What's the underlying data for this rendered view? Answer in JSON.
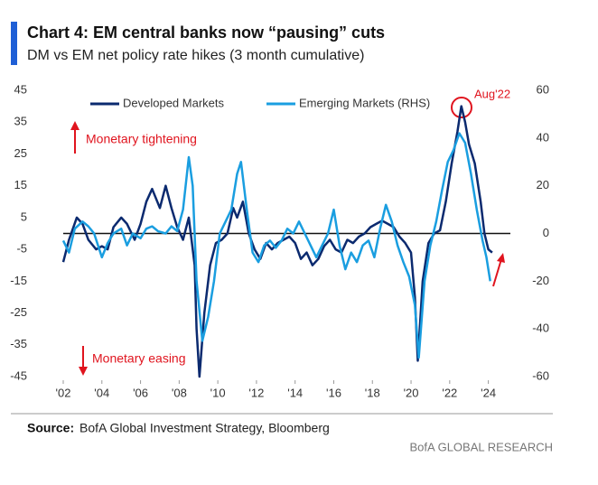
{
  "chart_data": {
    "type": "line",
    "title": "Chart 4: EM central banks now “pausing” cuts",
    "subtitle": "DM vs EM net policy rate hikes (3 month cumulative)",
    "annotations": [
      "Monetary tightening",
      "Monetary easing",
      "Aug'22"
    ],
    "source_label": "Source:",
    "source": "BofA Global Investment Strategy, Bloomberg",
    "footer": "BofA GLOBAL RESEARCH",
    "xlim": [
      2002,
      2025
    ],
    "xticks": [
      {
        "value": 2002,
        "label": "'02"
      },
      {
        "value": 2004,
        "label": "'04"
      },
      {
        "value": 2006,
        "label": "'06"
      },
      {
        "value": 2008,
        "label": "'08"
      },
      {
        "value": 2010,
        "label": "'10"
      },
      {
        "value": 2012,
        "label": "'12"
      },
      {
        "value": 2014,
        "label": "'14"
      },
      {
        "value": 2016,
        "label": "'16"
      },
      {
        "value": 2018,
        "label": "'18"
      },
      {
        "value": 2020,
        "label": "'20"
      },
      {
        "value": 2022,
        "label": "'22"
      },
      {
        "value": 2024,
        "label": "'24"
      }
    ],
    "ylim": [
      -45,
      45
    ],
    "yticks": [
      45,
      35,
      25,
      15,
      5,
      -5,
      -15,
      -25,
      -35,
      -45
    ],
    "y2lim": [
      -60,
      60
    ],
    "y2ticks": [
      60,
      40,
      20,
      0,
      -20,
      -40,
      -60
    ],
    "series": [
      {
        "name": "Developed Markets",
        "color": "#0b2a6f",
        "x": [
          2002.0,
          2002.3,
          2002.7,
          2003.0,
          2003.3,
          2003.7,
          2004.0,
          2004.3,
          2004.6,
          2005.0,
          2005.3,
          2005.7,
          2006.0,
          2006.3,
          2006.6,
          2007.0,
          2007.3,
          2007.6,
          2007.9,
          2008.2,
          2008.5,
          2008.8,
          2008.9,
          2009.05,
          2009.3,
          2009.6,
          2009.9,
          2010.2,
          2010.5,
          2010.8,
          2011.0,
          2011.3,
          2011.6,
          2011.9,
          2012.2,
          2012.5,
          2012.8,
          2013.1,
          2013.4,
          2013.7,
          2014.0,
          2014.3,
          2014.6,
          2014.9,
          2015.2,
          2015.5,
          2015.8,
          2016.1,
          2016.4,
          2016.7,
          2017.0,
          2017.3,
          2017.6,
          2017.9,
          2018.2,
          2018.5,
          2018.8,
          2019.1,
          2019.4,
          2019.7,
          2020.0,
          2020.2,
          2020.35,
          2020.6,
          2020.9,
          2021.2,
          2021.5,
          2021.8,
          2022.1,
          2022.4,
          2022.6,
          2022.8,
          2023.0,
          2023.3,
          2023.6,
          2023.8,
          2024.0,
          2024.2
        ],
        "values": [
          -9,
          -2,
          5,
          3,
          -2,
          -5,
          -4,
          -5,
          2,
          5,
          3,
          -2,
          3,
          10,
          14,
          8,
          15,
          8,
          2,
          -2,
          5,
          -10,
          -30,
          -45,
          -25,
          -10,
          -3,
          -2,
          0,
          8,
          5,
          10,
          0,
          -5,
          -8,
          -3,
          -5,
          -3,
          -2,
          -1,
          -3,
          -8,
          -6,
          -10,
          -8,
          -4,
          -2,
          -5,
          -6,
          -2,
          -3,
          -1,
          0,
          2,
          3,
          4,
          3,
          2,
          -1,
          -3,
          -6,
          -20,
          -40,
          -15,
          -3,
          0,
          1,
          10,
          22,
          32,
          40,
          35,
          28,
          22,
          10,
          0,
          -5,
          -6
        ]
      },
      {
        "name": "Emerging Markets (RHS)",
        "color": "#1a9ee0",
        "axis": "y2",
        "x": [
          2002.0,
          2002.3,
          2002.6,
          2003.0,
          2003.3,
          2003.6,
          2004.0,
          2004.3,
          2004.6,
          2005.0,
          2005.3,
          2005.6,
          2006.0,
          2006.3,
          2006.6,
          2006.9,
          2007.3,
          2007.6,
          2007.9,
          2008.2,
          2008.5,
          2008.7,
          2008.9,
          2009.2,
          2009.5,
          2009.8,
          2010.1,
          2010.4,
          2010.7,
          2011.0,
          2011.2,
          2011.5,
          2011.8,
          2012.1,
          2012.4,
          2012.7,
          2013.0,
          2013.3,
          2013.6,
          2013.9,
          2014.2,
          2014.5,
          2014.8,
          2015.1,
          2015.4,
          2015.7,
          2016.0,
          2016.3,
          2016.6,
          2016.9,
          2017.2,
          2017.5,
          2017.8,
          2018.1,
          2018.4,
          2018.7,
          2019.0,
          2019.3,
          2019.6,
          2019.9,
          2020.2,
          2020.4,
          2020.7,
          2021.0,
          2021.3,
          2021.6,
          2021.9,
          2022.2,
          2022.5,
          2022.8,
          2023.1,
          2023.4,
          2023.7,
          2023.9,
          2024.1
        ],
        "values": [
          -3,
          -8,
          2,
          5,
          3,
          0,
          -10,
          -4,
          0,
          2,
          -5,
          0,
          -2,
          2,
          3,
          1,
          0,
          3,
          1,
          10,
          32,
          20,
          -20,
          -45,
          -35,
          -20,
          0,
          5,
          10,
          25,
          30,
          10,
          -8,
          -12,
          -5,
          -3,
          -6,
          -3,
          2,
          0,
          5,
          0,
          -5,
          -10,
          -5,
          0,
          10,
          -5,
          -15,
          -8,
          -12,
          -5,
          -3,
          -10,
          2,
          12,
          5,
          -5,
          -12,
          -18,
          -30,
          -52,
          -20,
          -5,
          5,
          18,
          30,
          35,
          42,
          38,
          25,
          10,
          -3,
          -10,
          -20
        ]
      }
    ]
  }
}
